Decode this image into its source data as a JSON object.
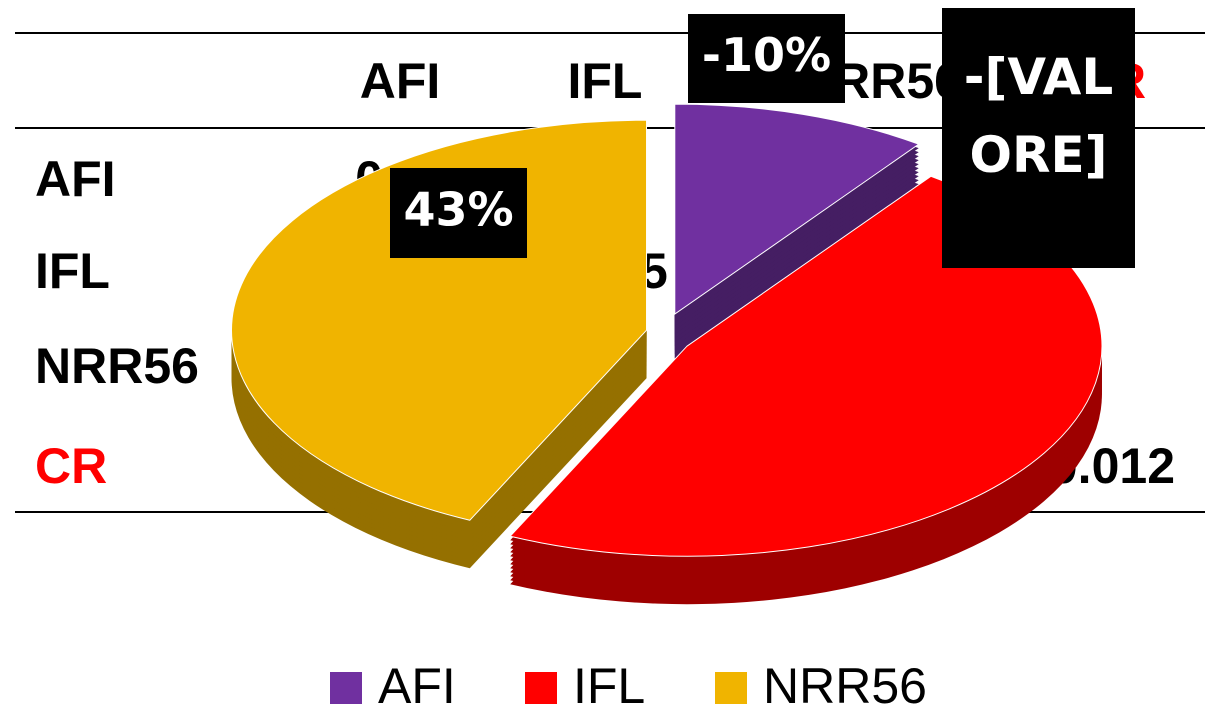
{
  "table": {
    "columns": [
      "AFI",
      "IFL",
      "NRR56",
      "CR"
    ],
    "rows": [
      {
        "label": "AFI",
        "cells": [
          "0.0",
          null,
          null,
          null
        ]
      },
      {
        "label": "IFL",
        "cells": [
          null,
          "15",
          null,
          null
        ]
      },
      {
        "label": "NRR56",
        "cells": [
          null,
          null,
          null,
          null
        ]
      },
      {
        "label": "CR",
        "cells": [
          null,
          null,
          null,
          "0.012"
        ]
      }
    ]
  },
  "chart_data": {
    "type": "pie",
    "categories": [
      "AFI",
      "IFL",
      "NRR56"
    ],
    "values": [
      10,
      47,
      43
    ],
    "value_labels": [
      "-10%",
      "-[VALORE]",
      "43%"
    ],
    "colors": [
      "#7030a0",
      "#ff0000",
      "#f0b400"
    ],
    "legend": "bottom"
  }
}
